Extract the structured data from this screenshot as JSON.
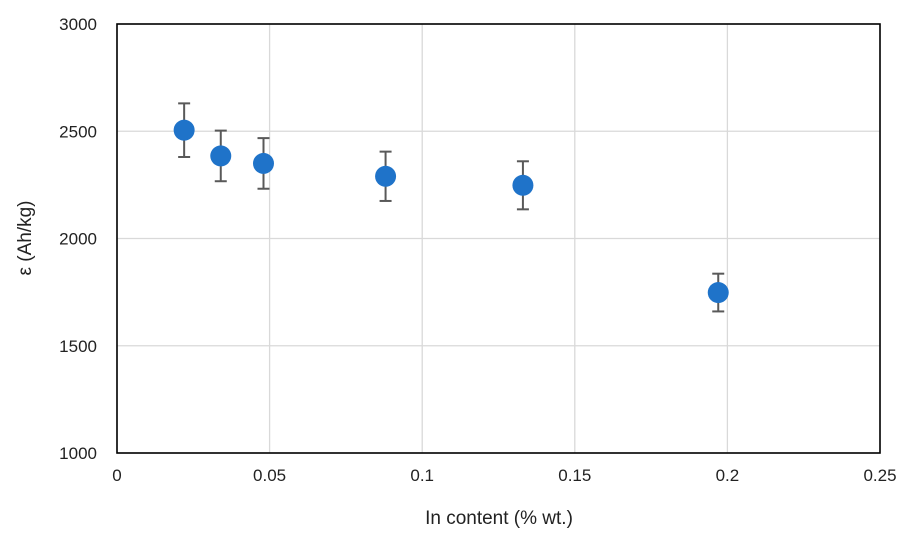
{
  "chart_data": {
    "type": "scatter",
    "xlabel": "In content (% wt.)",
    "ylabel": "ε (Ah/kg)",
    "xlim": [
      0,
      0.25
    ],
    "ylim": [
      1000,
      3000
    ],
    "x_ticks": [
      0,
      0.05,
      0.1,
      0.15,
      0.2,
      0.25
    ],
    "x_tick_labels": [
      "0",
      "0.05",
      "0.1",
      "0.15",
      "0.2",
      "0.25"
    ],
    "y_ticks": [
      1000,
      1500,
      2000,
      2500,
      3000
    ],
    "y_tick_labels": [
      "1000",
      "1500",
      "2000",
      "2500",
      "3000"
    ],
    "grid": true,
    "colors": {
      "marker": "#1f73c9",
      "error_bar": "#595959",
      "grid": "#d9d9d9"
    },
    "series": [
      {
        "x": [
          0.022,
          0.034,
          0.048,
          0.088,
          0.133,
          0.197
        ],
        "y": [
          2505,
          2385,
          2350,
          2290,
          2248,
          1748
        ],
        "y_error": [
          125,
          118,
          118,
          115,
          112,
          88
        ]
      }
    ]
  }
}
